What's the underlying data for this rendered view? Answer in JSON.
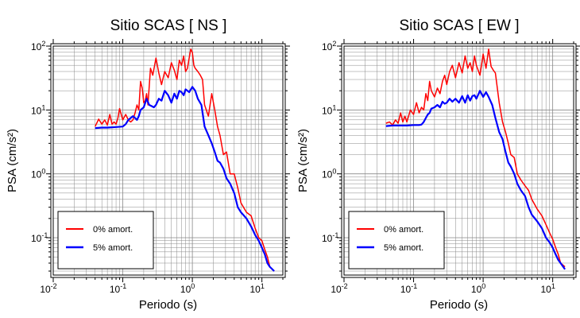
{
  "chart_data": [
    {
      "type": "line",
      "title": "Sitio SCAS [ NS ]",
      "xlabel": "Periodo (s)",
      "ylabel": "PSA (cm/s²)",
      "xscale": "log",
      "yscale": "log",
      "xlim": [
        0.01,
        20
      ],
      "ylim": [
        0.026,
        100
      ],
      "x_ticks": [
        "10",
        "10",
        "10",
        "10"
      ],
      "x_tick_exponents": [
        "-2",
        "-1",
        "0",
        "1"
      ],
      "y_ticks": [
        "10",
        "10",
        "10",
        "10"
      ],
      "y_tick_exponents": [
        "-1",
        "0",
        "1",
        "2"
      ],
      "grid": true,
      "legend_placement": "bottom-left",
      "series": [
        {
          "name": "0% amort.",
          "color": "#ff0000",
          "x": [
            0.04,
            0.045,
            0.05,
            0.055,
            0.06,
            0.065,
            0.07,
            0.075,
            0.08,
            0.085,
            0.09,
            0.1,
            0.11,
            0.12,
            0.13,
            0.14,
            0.15,
            0.16,
            0.17,
            0.18,
            0.19,
            0.2,
            0.21,
            0.22,
            0.23,
            0.25,
            0.27,
            0.3,
            0.33,
            0.36,
            0.4,
            0.45,
            0.5,
            0.55,
            0.6,
            0.65,
            0.7,
            0.75,
            0.8,
            0.85,
            0.9,
            0.95,
            1.0,
            1.05,
            1.1,
            1.2,
            1.3,
            1.4,
            1.5,
            1.7,
            1.9,
            2.1,
            2.3,
            2.5,
            2.8,
            3.1,
            3.5,
            4.0,
            4.5,
            5.0,
            6.0,
            7.0,
            8.0,
            9.0,
            10.0,
            11.0,
            12.0,
            13.0,
            15.0
          ],
          "y": [
            5.5,
            7.2,
            6.0,
            7.0,
            5.8,
            8.5,
            6.0,
            6.5,
            6.0,
            7.5,
            10.5,
            7.0,
            8.5,
            7.0,
            6.5,
            7.0,
            9.0,
            12.0,
            10.0,
            28.0,
            22.0,
            13.0,
            14.0,
            18.0,
            12.0,
            45.0,
            35.0,
            65.0,
            38.0,
            25.0,
            40.0,
            32.0,
            55.0,
            42.0,
            30.0,
            60.0,
            50.0,
            70.0,
            40.0,
            45.0,
            65.0,
            90.0,
            80.0,
            50.0,
            45.0,
            40.0,
            35.0,
            30.0,
            12.0,
            8.0,
            18.0,
            10.0,
            5.5,
            4.0,
            2.0,
            2.2,
            1.0,
            1.0,
            0.6,
            0.35,
            0.25,
            0.22,
            0.14,
            0.1,
            0.09,
            0.065,
            0.05,
            0.035,
            0.03
          ]
        },
        {
          "name": "5% amort.",
          "color": "#0000ff",
          "x": [
            0.04,
            0.05,
            0.06,
            0.08,
            0.1,
            0.11,
            0.12,
            0.13,
            0.14,
            0.15,
            0.16,
            0.17,
            0.18,
            0.2,
            0.22,
            0.24,
            0.26,
            0.28,
            0.3,
            0.33,
            0.36,
            0.4,
            0.45,
            0.5,
            0.55,
            0.6,
            0.65,
            0.7,
            0.75,
            0.8,
            0.9,
            1.0,
            1.1,
            1.2,
            1.35,
            1.5,
            1.7,
            1.9,
            2.1,
            2.3,
            2.5,
            2.8,
            3.1,
            3.5,
            4.0,
            4.5,
            5.0,
            6.0,
            7.0,
            8.0,
            9.0,
            10.0,
            11.0,
            12.0,
            13.0,
            15.0
          ],
          "y": [
            5.2,
            5.3,
            5.3,
            5.4,
            5.5,
            6.0,
            7.0,
            7.5,
            8.0,
            7.5,
            7.0,
            8.0,
            10.0,
            11.0,
            15.0,
            12.0,
            11.5,
            11.0,
            12.0,
            15.0,
            14.0,
            20.0,
            17.0,
            13.0,
            18.0,
            15.0,
            20.0,
            19.0,
            17.0,
            21.0,
            19.0,
            23.0,
            20.0,
            15.0,
            12.0,
            5.5,
            4.0,
            3.0,
            2.2,
            1.6,
            1.5,
            1.2,
            0.85,
            0.7,
            0.5,
            0.3,
            0.25,
            0.2,
            0.15,
            0.11,
            0.09,
            0.07,
            0.055,
            0.04,
            0.035,
            0.03
          ]
        }
      ]
    },
    {
      "type": "line",
      "title": "Sitio SCAS [ EW ]",
      "xlabel": "Periodo (s)",
      "ylabel": "PSA (cm/s²)",
      "xscale": "log",
      "yscale": "log",
      "xlim": [
        0.01,
        20
      ],
      "ylim": [
        0.026,
        100
      ],
      "x_ticks": [
        "10",
        "10",
        "10",
        "10"
      ],
      "x_tick_exponents": [
        "-2",
        "-1",
        "0",
        "1"
      ],
      "y_ticks": [
        "10",
        "10",
        "10",
        "10"
      ],
      "y_tick_exponents": [
        "-1",
        "0",
        "1",
        "2"
      ],
      "grid": true,
      "legend_placement": "bottom-left",
      "series": [
        {
          "name": "0% amort.",
          "color": "#ff0000",
          "x": [
            0.04,
            0.045,
            0.05,
            0.055,
            0.06,
            0.065,
            0.07,
            0.075,
            0.08,
            0.09,
            0.1,
            0.11,
            0.12,
            0.13,
            0.14,
            0.15,
            0.16,
            0.17,
            0.18,
            0.2,
            0.22,
            0.24,
            0.26,
            0.28,
            0.3,
            0.33,
            0.36,
            0.4,
            0.45,
            0.5,
            0.55,
            0.6,
            0.65,
            0.7,
            0.75,
            0.8,
            0.9,
            1.0,
            1.1,
            1.2,
            1.3,
            1.4,
            1.5,
            1.7,
            1.9,
            2.1,
            2.3,
            2.5,
            2.8,
            3.1,
            3.5,
            4.0,
            4.5,
            5.0,
            6.0,
            7.0,
            8.0,
            9.0,
            10.0,
            11.0,
            12.0,
            13.0,
            15.0
          ],
          "y": [
            6.2,
            6.5,
            5.8,
            7.0,
            6.2,
            9.0,
            6.5,
            8.0,
            6.5,
            10.0,
            8.5,
            13.0,
            9.0,
            11.0,
            10.0,
            18.0,
            14.0,
            28.0,
            20.0,
            16.0,
            22.0,
            18.0,
            28.0,
            35.0,
            25.0,
            40.0,
            50.0,
            32.0,
            55.0,
            38.0,
            70.0,
            45.0,
            55.0,
            40.0,
            70.0,
            50.0,
            35.0,
            75.0,
            45.0,
            90.0,
            48.0,
            42.0,
            38.0,
            13.0,
            6.5,
            4.5,
            3.0,
            2.0,
            1.8,
            1.0,
            0.8,
            0.65,
            0.55,
            0.4,
            0.28,
            0.22,
            0.16,
            0.12,
            0.095,
            0.07,
            0.055,
            0.04,
            0.035
          ]
        },
        {
          "name": "5% amort.",
          "color": "#0000ff",
          "x": [
            0.04,
            0.05,
            0.06,
            0.08,
            0.1,
            0.12,
            0.13,
            0.14,
            0.15,
            0.16,
            0.17,
            0.18,
            0.2,
            0.22,
            0.24,
            0.26,
            0.28,
            0.3,
            0.33,
            0.36,
            0.4,
            0.45,
            0.5,
            0.55,
            0.6,
            0.65,
            0.7,
            0.75,
            0.8,
            0.9,
            1.0,
            1.1,
            1.2,
            1.35,
            1.5,
            1.7,
            1.9,
            2.1,
            2.3,
            2.5,
            2.8,
            3.1,
            3.5,
            4.0,
            4.5,
            5.0,
            6.0,
            7.0,
            8.0,
            9.0,
            10.0,
            11.0,
            12.0,
            13.0,
            15.0
          ],
          "y": [
            5.6,
            5.7,
            5.7,
            5.7,
            5.8,
            5.8,
            5.9,
            6.5,
            7.5,
            8.5,
            9.0,
            10.5,
            11.0,
            12.0,
            11.0,
            13.5,
            12.5,
            13.0,
            15.0,
            13.5,
            15.0,
            13.0,
            16.5,
            13.0,
            17.0,
            14.0,
            16.5,
            17.0,
            15.0,
            20.0,
            16.0,
            19.0,
            16.0,
            12.0,
            7.5,
            4.5,
            3.5,
            2.2,
            1.5,
            1.3,
            1.0,
            0.7,
            0.55,
            0.45,
            0.3,
            0.23,
            0.18,
            0.14,
            0.1,
            0.085,
            0.07,
            0.055,
            0.045,
            0.04,
            0.032
          ]
        }
      ]
    }
  ]
}
